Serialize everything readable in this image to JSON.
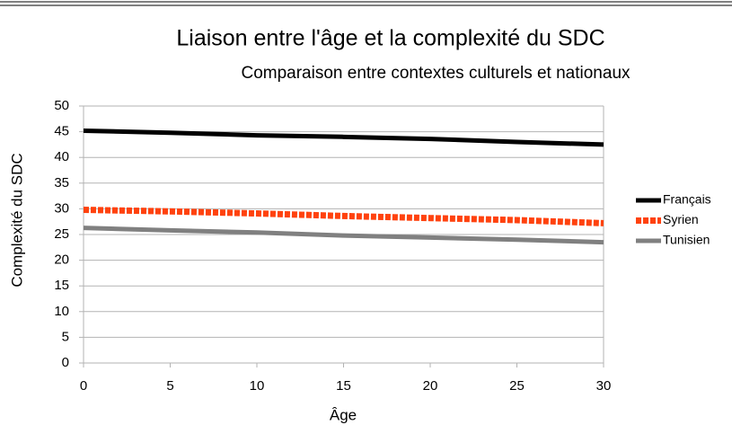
{
  "chart_data": {
    "type": "line",
    "title": "Liaison entre l'âge et la complexité du SDC",
    "subtitle": "Comparaison entre contextes culturels et nationaux",
    "xlabel": "Âge",
    "ylabel": "Complexité du SDC",
    "x": [
      0,
      5,
      10,
      15,
      20,
      25,
      30
    ],
    "series": [
      {
        "name": "Français",
        "color": "#000000",
        "values": [
          45.2,
          44.8,
          44.3,
          44.0,
          43.6,
          43.0,
          42.5
        ]
      },
      {
        "name": "Syrien",
        "color": "#ff420e",
        "dashed": true,
        "values": [
          29.8,
          29.5,
          29.1,
          28.6,
          28.2,
          27.8,
          27.2
        ]
      },
      {
        "name": "Tunisien",
        "color": "#808080",
        "values": [
          26.3,
          25.8,
          25.4,
          24.8,
          24.4,
          24.0,
          23.5
        ]
      }
    ],
    "xlim": [
      0,
      30
    ],
    "xticks": [
      0,
      5,
      10,
      15,
      20,
      25,
      30
    ],
    "ylim": [
      0,
      50
    ],
    "yticks": [
      0,
      5,
      10,
      15,
      20,
      25,
      30,
      35,
      40,
      45,
      50
    ],
    "grid": true,
    "legend": "right"
  }
}
